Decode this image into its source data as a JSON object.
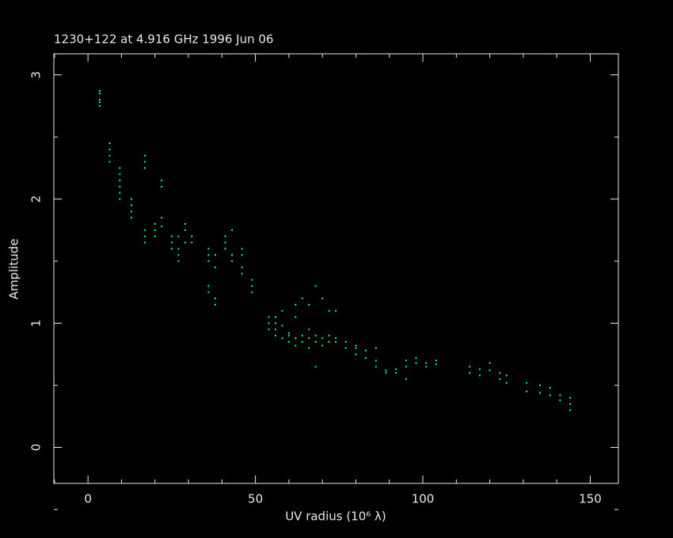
{
  "chart_data": {
    "type": "scatter",
    "title": "1230+122 at 4.916 GHz 1996 Jun 06",
    "xlabel": "UV radius  (10⁶ λ)",
    "ylabel": "Amplitude",
    "xlim": [
      -10.2,
      158.4
    ],
    "ylim": [
      -0.29,
      3.17
    ],
    "xticks": [
      0,
      50,
      100,
      150
    ],
    "yticks": [
      0,
      1,
      2,
      3
    ],
    "xminorticks": [
      -10,
      10,
      20,
      30,
      40,
      60,
      70,
      80,
      90,
      110,
      120,
      130,
      140
    ],
    "yminorticks": [
      -0.5,
      0.5,
      1.5,
      2.5
    ],
    "x": [
      3.5,
      3.5,
      3.5,
      3.5,
      3.5,
      6.5,
      6.5,
      6.5,
      6.5,
      9.5,
      9.5,
      9.5,
      9.5,
      9.5,
      9.5,
      13,
      13,
      13,
      13,
      17,
      17,
      17,
      17,
      17,
      17,
      20,
      20,
      20,
      22,
      22,
      22,
      22,
      25,
      25,
      25,
      27,
      27,
      27,
      27,
      29,
      29,
      29,
      31,
      31,
      36,
      36,
      36,
      36,
      36,
      38,
      38,
      38,
      38,
      41,
      41,
      41,
      43,
      43,
      43,
      46,
      46,
      46,
      46,
      49,
      49,
      49,
      54,
      54,
      54,
      56,
      56,
      56,
      56,
      58,
      58,
      58,
      60,
      60,
      60,
      62,
      62,
      62,
      62,
      64,
      64,
      64,
      66,
      66,
      66,
      66,
      68,
      68,
      68,
      68,
      70,
      70,
      70,
      72,
      72,
      72,
      74,
      74,
      74,
      77,
      77,
      80,
      80,
      80,
      83,
      83,
      86,
      86,
      86,
      89,
      89,
      92,
      92,
      95,
      95,
      95,
      98,
      98,
      101,
      101,
      104,
      104,
      114,
      114,
      117,
      117,
      120,
      120,
      123,
      123,
      125,
      125,
      131,
      131,
      135,
      135,
      138,
      138,
      141,
      141,
      144,
      144,
      144
    ],
    "series": [
      {
        "color": "#00ff80",
        "values": [
          2.8,
          2.85,
          2.75,
          2.87,
          2.78,
          2.45,
          2.35,
          2.3,
          2.4,
          2.2,
          2.1,
          2.05,
          2.15,
          2.0,
          2.25,
          1.95,
          1.9,
          1.85,
          2.0,
          2.35,
          2.3,
          2.25,
          1.7,
          1.65,
          1.75,
          1.75,
          1.7,
          1.8,
          2.15,
          2.1,
          1.85,
          1.78,
          1.7,
          1.65,
          1.6,
          1.55,
          1.6,
          1.7,
          1.5,
          1.75,
          1.8,
          1.65,
          1.7,
          1.65,
          1.6,
          1.55,
          1.5,
          1.3,
          1.25,
          1.55,
          1.45,
          1.2,
          1.15,
          1.7,
          1.65,
          1.6,
          1.55,
          1.5,
          1.75,
          1.6,
          1.55,
          1.45,
          1.4,
          1.3,
          1.25,
          1.35,
          1.05,
          1.0,
          0.95,
          1.0,
          1.05,
          0.95,
          0.9,
          1.1,
          0.98,
          0.88,
          0.92,
          0.85,
          0.9,
          1.15,
          0.88,
          0.82,
          1.05,
          1.2,
          0.9,
          0.85,
          1.15,
          0.95,
          0.8,
          0.88,
          1.3,
          0.9,
          0.85,
          0.65,
          1.2,
          0.88,
          0.82,
          1.1,
          0.9,
          0.85,
          1.1,
          0.85,
          0.88,
          0.85,
          0.8,
          0.8,
          0.75,
          0.82,
          0.78,
          0.72,
          0.7,
          0.65,
          0.8,
          0.62,
          0.6,
          0.63,
          0.6,
          0.7,
          0.65,
          0.55,
          0.72,
          0.68,
          0.68,
          0.65,
          0.67,
          0.7,
          0.65,
          0.6,
          0.63,
          0.58,
          0.68,
          0.62,
          0.6,
          0.55,
          0.58,
          0.52,
          0.52,
          0.45,
          0.5,
          0.44,
          0.48,
          0.42,
          0.42,
          0.38,
          0.4,
          0.35,
          0.3
        ]
      }
    ]
  }
}
